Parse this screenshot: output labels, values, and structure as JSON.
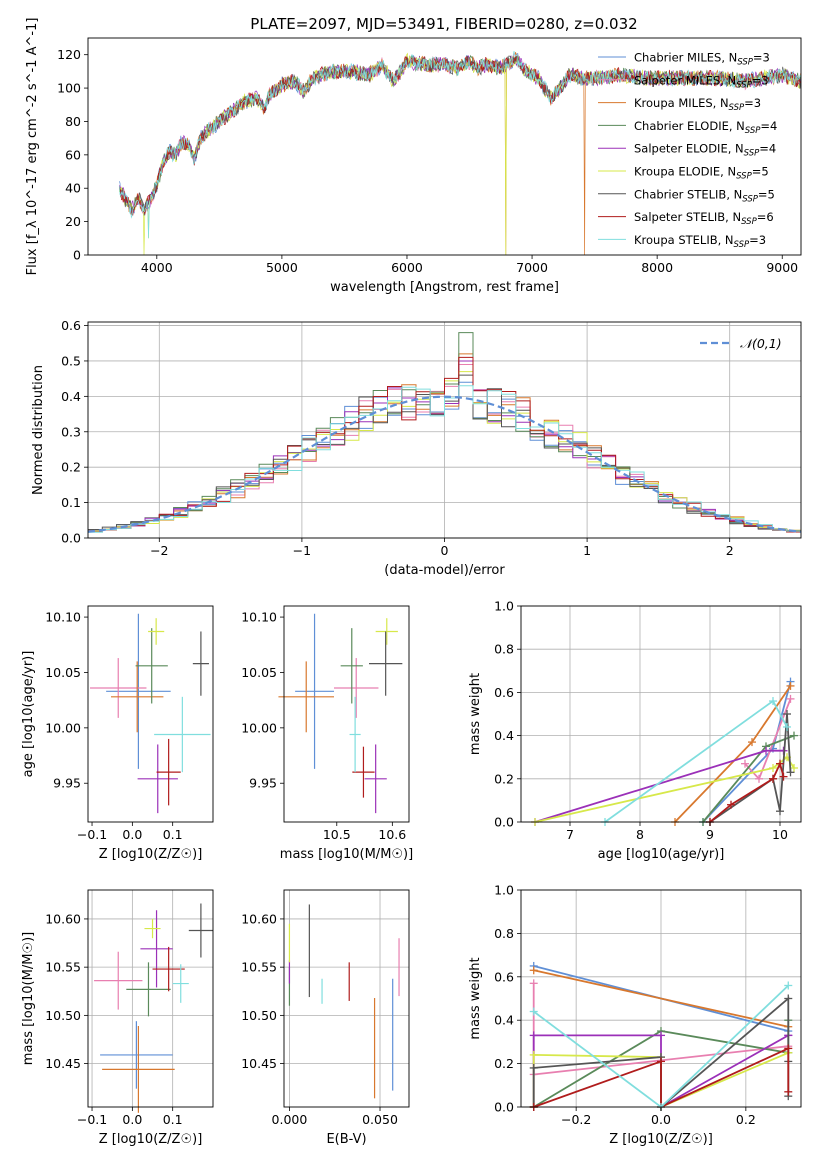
{
  "colors": [
    "#5f8fd6",
    "#e87fb0",
    "#d8782e",
    "#5a8a5a",
    "#9b30b8",
    "#d7e84a",
    "#555555",
    "#b01c1c",
    "#80dede"
  ],
  "spectrum_title": "PLATE=2097, MJD=53491, FIBERID=0280, z=0.032",
  "legend_labels": [
    "Chabrier MILES, N_SSP=3",
    "Salpeter MILES, N_SSP=3",
    "Kroupa MILES, N_SSP=3",
    "Chabrier ELODIE, N_SSP=4",
    "Salpeter ELODIE, N_SSP=4",
    "Kroupa ELODIE, N_SSP=5",
    "Chabrier STELIB, N_SSP=5",
    "Salpeter STELIB, N_SSP=6",
    "Kroupa STELIB, N_SSP=3"
  ],
  "gauss_label": "𝒩(0,1)",
  "chart_data": [
    {
      "id": "spectrum",
      "type": "line",
      "title": "PLATE=2097, MJD=53491, FIBERID=0280, z=0.032",
      "xlabel": "wavelength [Angstrom, rest frame]",
      "ylabel": "Flux [f_λ 10^-17 erg cm^-2 s^-1 A^-1]",
      "xlim": [
        3450,
        9150
      ],
      "ylim": [
        0,
        130
      ],
      "xticks": [
        4000,
        5000,
        6000,
        7000,
        8000,
        9000
      ],
      "yticks": [
        0,
        20,
        40,
        60,
        80,
        100,
        120
      ],
      "grid": false,
      "legend": "right",
      "wavelength_knots": [
        3700,
        3750,
        3800,
        3850,
        3900,
        3950,
        4000,
        4050,
        4100,
        4150,
        4200,
        4250,
        4300,
        4350,
        4400,
        4500,
        4600,
        4700,
        4800,
        4861,
        4900,
        5000,
        5100,
        5175,
        5250,
        5400,
        5550,
        5700,
        5800,
        5893,
        6000,
        6100,
        6200,
        6300,
        6400,
        6500,
        6563,
        6650,
        6750,
        6870,
        6950,
        7050,
        7150,
        7200,
        7300,
        7400,
        7500,
        7700,
        7900,
        8200,
        8500,
        8700,
        9000,
        9150
      ],
      "flux_knots": [
        40,
        33,
        27,
        34,
        28,
        33,
        42,
        55,
        62,
        60,
        68,
        66,
        58,
        70,
        74,
        80,
        86,
        92,
        94,
        88,
        96,
        102,
        104,
        98,
        106,
        110,
        110,
        108,
        114,
        104,
        116,
        115,
        114,
        114,
        112,
        116,
        112,
        114,
        112,
        118,
        110,
        106,
        94,
        98,
        108,
        106,
        106,
        108,
        106,
        106,
        106,
        104,
        108,
        104
      ],
      "dips": [
        {
          "x": 3900,
          "series": [
            5
          ],
          "to": 0
        },
        {
          "x": 3935,
          "series": [
            5,
            8
          ],
          "to": 10
        },
        {
          "x": 6790,
          "series": [
            2,
            5
          ],
          "to": 0
        },
        {
          "x": 7420,
          "series": [
            2
          ],
          "to": 0
        }
      ]
    },
    {
      "id": "residuals",
      "type": "area",
      "xlabel": "(data-model)/error",
      "ylabel": "Normed distribution",
      "xlim": [
        -2.5,
        2.5
      ],
      "ylim": [
        0,
        0.61
      ],
      "xticks": [
        -2,
        -1,
        0,
        1,
        2
      ],
      "yticks": [
        0,
        0.1,
        0.2,
        0.3,
        0.4,
        0.5,
        0.6
      ],
      "grid": true,
      "legend": "top-right",
      "bin_width": 0.1,
      "reference_curve": "standard normal, mean 0, sigma 1",
      "peak_values": [
        0.44,
        0.49,
        0.52,
        0.58,
        0.5,
        0.47,
        0.46,
        0.51,
        0.43
      ]
    },
    {
      "id": "age_vs_Z",
      "type": "scatter",
      "xlabel": "Z [log10(Z/Z☉)]",
      "ylabel": "age  [log10(age/yr)]",
      "xlim": [
        -0.11,
        0.2
      ],
      "ylim": [
        9.915,
        10.11
      ],
      "xticks": [
        -0.1,
        0.0,
        0.1
      ],
      "yticks": [
        9.95,
        10.0,
        10.05,
        10.1
      ],
      "grid": false,
      "points": [
        {
          "x": 0.015,
          "y": 10.033,
          "xerr": 0.08,
          "yerr": 0.07
        },
        {
          "x": -0.035,
          "y": 10.036,
          "xerr": 0.07,
          "yerr": 0.027
        },
        {
          "x": 0.012,
          "y": 10.028,
          "xerr": 0.065,
          "yerr": 0.032
        },
        {
          "x": 0.048,
          "y": 10.056,
          "xerr": 0.04,
          "yerr": 0.034
        },
        {
          "x": 0.063,
          "y": 9.954,
          "xerr": 0.05,
          "yerr": 0.031
        },
        {
          "x": 0.059,
          "y": 10.087,
          "xerr": 0.02,
          "yerr": 0.012
        },
        {
          "x": 0.17,
          "y": 10.058,
          "xerr": 0.02,
          "yerr": 0.029
        },
        {
          "x": 0.09,
          "y": 9.96,
          "xerr": 0.03,
          "yerr": 0.03
        },
        {
          "x": 0.124,
          "y": 9.994,
          "xerr": 0.07,
          "yerr": 0.034
        }
      ]
    },
    {
      "id": "age_vs_mass",
      "type": "scatter",
      "xlabel": "mass [log10(M/M☉)]",
      "ylabel": "",
      "xlim": [
        10.405,
        10.63
      ],
      "ylim": [
        9.915,
        10.11
      ],
      "xticks": [
        10.5,
        10.6
      ],
      "yticks": [
        9.95,
        10.0,
        10.05,
        10.1
      ],
      "grid": false,
      "points": [
        {
          "x": 10.46,
          "y": 10.033,
          "xerr": 0.035,
          "yerr": 0.07
        },
        {
          "x": 10.535,
          "y": 10.036,
          "xerr": 0.04,
          "yerr": 0.027
        },
        {
          "x": 10.445,
          "y": 10.028,
          "xerr": 0.05,
          "yerr": 0.032
        },
        {
          "x": 10.527,
          "y": 10.056,
          "xerr": 0.02,
          "yerr": 0.034
        },
        {
          "x": 10.57,
          "y": 9.954,
          "xerr": 0.02,
          "yerr": 0.031
        },
        {
          "x": 10.59,
          "y": 10.087,
          "xerr": 0.02,
          "yerr": 0.012
        },
        {
          "x": 10.588,
          "y": 10.058,
          "xerr": 0.03,
          "yerr": 0.029
        },
        {
          "x": 10.548,
          "y": 9.96,
          "xerr": 0.02,
          "yerr": 0.023
        },
        {
          "x": 10.533,
          "y": 9.994,
          "xerr": 0.01,
          "yerr": 0.034
        }
      ]
    },
    {
      "id": "weight_vs_age",
      "type": "line",
      "xlabel": "age  [log10(age/yr)]",
      "ylabel": "mass weight",
      "xlim": [
        6.3,
        10.3
      ],
      "ylim": [
        0,
        1
      ],
      "xticks": [
        7,
        8,
        9,
        10
      ],
      "yticks": [
        0,
        0.2,
        0.4,
        0.6,
        0.8,
        1.0
      ],
      "grid": true,
      "series": [
        {
          "x": [
            8.9,
            9.9,
            10.15
          ],
          "y": [
            0.0,
            0.34,
            0.65
          ]
        },
        {
          "x": [
            9.5,
            9.7,
            10.15
          ],
          "y": [
            0.27,
            0.2,
            0.57
          ]
        },
        {
          "x": [
            8.5,
            9.6,
            10.15
          ],
          "y": [
            0.0,
            0.37,
            0.63
          ]
        },
        {
          "x": [
            8.9,
            9.8,
            10.2
          ],
          "y": [
            0.0,
            0.35,
            0.4
          ]
        },
        {
          "x": [
            6.5,
            9.8,
            10.05
          ],
          "y": [
            0.0,
            0.33,
            0.33
          ]
        },
        {
          "x": [
            6.5,
            9.9,
            10.1,
            10.2
          ],
          "y": [
            0.0,
            0.25,
            0.3,
            0.25
          ]
        },
        {
          "x": [
            9.0,
            9.9,
            10.0,
            10.1,
            10.15
          ],
          "y": [
            0.0,
            0.2,
            0.05,
            0.5,
            0.23
          ]
        },
        {
          "x": [
            9.0,
            9.3,
            9.9,
            10.0,
            10.05
          ],
          "y": [
            0.0,
            0.08,
            0.2,
            0.27,
            0.21
          ]
        },
        {
          "x": [
            7.5,
            9.9,
            10.1
          ],
          "y": [
            0.0,
            0.56,
            0.44
          ]
        }
      ]
    },
    {
      "id": "mass_vs_Z",
      "type": "scatter",
      "xlabel": "Z [log10(Z/Z☉)]",
      "ylabel": "mass [log10(M/M☉)]",
      "xlim": [
        -0.11,
        0.2
      ],
      "ylim": [
        10.405,
        10.63
      ],
      "xticks": [
        -0.1,
        0.0,
        0.1
      ],
      "yticks": [
        10.45,
        10.5,
        10.55,
        10.6
      ],
      "grid": true,
      "points": [
        {
          "x": 0.01,
          "y": 10.459,
          "xerr": 0.09,
          "yerr": 0.035
        },
        {
          "x": -0.035,
          "y": 10.536,
          "xerr": 0.06,
          "yerr": 0.03
        },
        {
          "x": 0.015,
          "y": 10.444,
          "xerr": 0.09,
          "yerr": 0.045
        },
        {
          "x": 0.04,
          "y": 10.527,
          "xerr": 0.055,
          "yerr": 0.028
        },
        {
          "x": 0.06,
          "y": 10.569,
          "xerr": 0.04,
          "yerr": 0.04
        },
        {
          "x": 0.05,
          "y": 10.59,
          "xerr": 0.02,
          "yerr": 0.01
        },
        {
          "x": 0.17,
          "y": 10.588,
          "xerr": 0.03,
          "yerr": 0.028
        },
        {
          "x": 0.09,
          "y": 10.548,
          "xerr": 0.04,
          "yerr": 0.023
        },
        {
          "x": 0.12,
          "y": 10.533,
          "xerr": 0.02,
          "yerr": 0.02
        }
      ]
    },
    {
      "id": "mass_vs_EBV",
      "type": "scatter",
      "xlabel": "E(B-V)",
      "ylabel": "",
      "xlim": [
        -0.003,
        0.066
      ],
      "ylim": [
        10.405,
        10.63
      ],
      "xticks": [
        0.0,
        0.05
      ],
      "yticks": [
        10.45,
        10.5,
        10.55,
        10.6
      ],
      "grid": true,
      "points": [
        {
          "x": 0.057,
          "y": 10.48,
          "xerr": 0,
          "yerr": 0.058
        },
        {
          "x": 0.0605,
          "y": 10.55,
          "xerr": 0,
          "yerr": 0.03
        },
        {
          "x": 0.047,
          "y": 10.466,
          "xerr": 0,
          "yerr": 0.052
        },
        {
          "x": 0.0,
          "y": 10.53,
          "xerr": 0,
          "yerr": 0.02
        },
        {
          "x": 0.0,
          "y": 10.545,
          "xerr": 0,
          "yerr": 0.012
        },
        {
          "x": 0.0,
          "y": 10.575,
          "xerr": 0,
          "yerr": 0.02
        },
        {
          "x": 0.011,
          "y": 10.567,
          "xerr": 0,
          "yerr": 0.048
        },
        {
          "x": 0.033,
          "y": 10.535,
          "xerr": 0,
          "yerr": 0.02
        },
        {
          "x": 0.018,
          "y": 10.525,
          "xerr": 0,
          "yerr": 0.013
        }
      ]
    },
    {
      "id": "weight_vs_Z",
      "type": "line",
      "xlabel": "Z [log10(Z/Z☉)]",
      "ylabel": "mass weight",
      "xlim": [
        -0.33,
        0.33
      ],
      "ylim": [
        0,
        1
      ],
      "xticks": [
        -0.2,
        0.0,
        0.2
      ],
      "yticks": [
        0,
        0.2,
        0.4,
        0.6,
        0.8,
        1.0
      ],
      "grid": true,
      "series": [
        {
          "x": [
            -0.3,
            0.3
          ],
          "y": [
            0.65,
            0.35
          ]
        },
        {
          "x": [
            -0.3,
            -0.3,
            0.3
          ],
          "y": [
            0.57,
            0.15,
            0.28
          ]
        },
        {
          "x": [
            -0.3,
            0.3
          ],
          "y": [
            0.63,
            0.37
          ]
        },
        {
          "x": [
            -0.3,
            0.0,
            0.3,
            0.3
          ],
          "y": [
            0.0,
            0.35,
            0.25,
            0.4
          ]
        },
        {
          "x": [
            -0.3,
            -0.3,
            0.0,
            0.0,
            0.3,
            0.3
          ],
          "y": [
            0.0,
            0.33,
            0.33,
            0.0,
            0.33,
            0.33
          ]
        },
        {
          "x": [
            -0.3,
            -0.3,
            0.0,
            0.0,
            0.3
          ],
          "y": [
            0.0,
            0.24,
            0.23,
            0.0,
            0.25
          ]
        },
        {
          "x": [
            -0.3,
            -0.3,
            0.0,
            0.0,
            0.3,
            0.3,
            0.3
          ],
          "y": [
            0.0,
            0.18,
            0.23,
            0.0,
            0.5,
            0.21,
            0.05
          ]
        },
        {
          "x": [
            -0.3,
            0.0,
            0.0,
            0.3,
            0.3
          ],
          "y": [
            0.0,
            0.21,
            0.0,
            0.27,
            0.07
          ]
        },
        {
          "x": [
            -0.3,
            0.0,
            0.3
          ],
          "y": [
            0.44,
            0.0,
            0.56
          ]
        }
      ]
    }
  ]
}
